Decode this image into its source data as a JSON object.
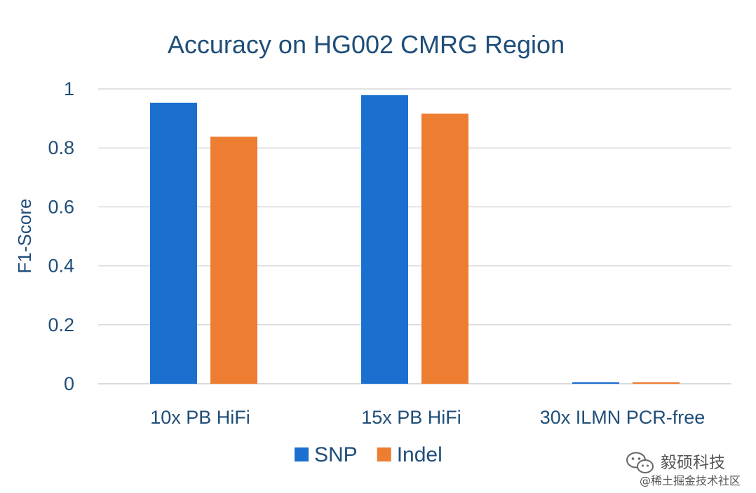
{
  "chart_data": {
    "type": "bar",
    "title": "Accuracy on HG002 CMRG Region",
    "xlabel": "",
    "ylabel": "F1-Score",
    "categories": [
      "10x PB HiFi",
      "15x PB HiFi",
      "30x ILMN PCR-free"
    ],
    "series": [
      {
        "name": "SNP",
        "color": "#1a6fcf",
        "values": [
          0.953,
          0.979,
          0.005
        ]
      },
      {
        "name": "Indel",
        "color": "#ed7d31",
        "values": [
          0.838,
          0.916,
          0.005
        ]
      }
    ],
    "ylim": [
      0,
      1
    ],
    "yticks": [
      0,
      0.2,
      0.4,
      0.6,
      0.8,
      1
    ],
    "ytick_labels": [
      "0",
      "0.2",
      "0.4",
      "0.6",
      "0.8",
      "1"
    ],
    "grid": true,
    "legend_position": "bottom-center"
  },
  "watermark": {
    "line1": "毅硕科技",
    "line2": "@稀土掘金技术社区"
  }
}
